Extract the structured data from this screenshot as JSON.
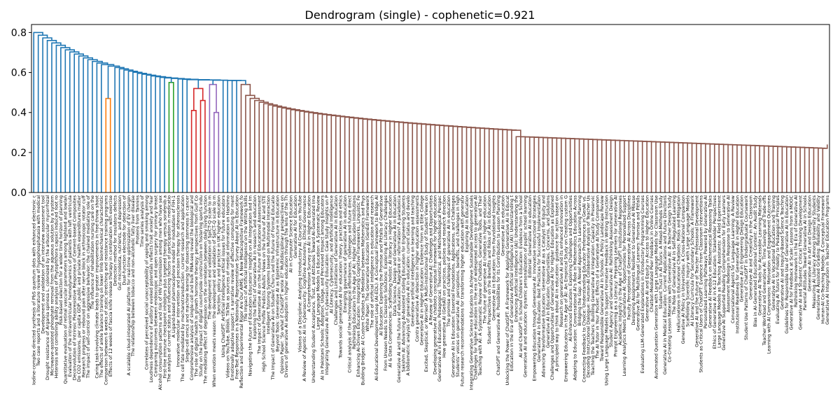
{
  "chart_data": {
    "type": "dendrogram",
    "title": "Dendrogram (single) - cophenetic=0.921",
    "xlabel": "",
    "ylabel": "",
    "ylim": [
      0,
      0.84
    ],
    "yticks": [
      0.0,
      0.2,
      0.4,
      0.6,
      0.8
    ],
    "ytick_labels": [
      "0.0",
      "0.2",
      "0.4",
      "0.6",
      "0.8"
    ],
    "colors": {
      "above_threshold": "#1f77b4",
      "cluster_orange": "#ff7f0e",
      "cluster_green": "#2ca02c",
      "cluster_red": "#d62728",
      "cluster_purple": "#9467bd",
      "cluster_brown": "#8c564b"
    },
    "clusters": [
      {
        "color": "cluster_orange",
        "leaf_range": [
          16,
          17
        ],
        "height": 0.47
      },
      {
        "color": "cluster_green",
        "leaf_range": [
          30,
          31
        ],
        "height": 0.55
      },
      {
        "color": "cluster_red",
        "leaf_range": [
          35,
          38
        ],
        "height": 0.52
      },
      {
        "color": "cluster_purple",
        "leaf_range": [
          39,
          41
        ],
        "height": 0.54
      },
      {
        "color": "cluster_brown",
        "leaf_range": [
          46,
          172
        ],
        "height": 0.54
      }
    ],
    "leaf_labels": [
      "Iodine-complex directed synthesis of PbS quantum dots with enhanced electronic c",
      "Two case reports and a literature review of hypophosphatasia with medical",
      "Development and validation of an interview assessment tool",
      "Drought resistance of Argania spinosa L. colonized by the arbuscular mycorrhizal",
      "Microwave-assisted phosphate removal from the aqueous solution by a system",
      "Heterosis and combining ability analysis of Phytophthora capsici induced root ro",
      "Risk-based selection for a wider time horizon of planning",
      "Quantitative evaluation of retinal vascular parameters among highland and lowlan",
      "Evaluation of the intraventricular hemodynamics of patients with left ventricula",
      "Deconvolution of Intrinsic Piezoresistive Responses of Cement-based Composites",
      "Do CO2 emissions, per capita GDP, public and private health expenditures matter",
      "Research progress or rebound pain after nerve block in arthroscopic rotator cuff",
      "The impact of self-control on aggressive behavior: the chained mediating role of",
      "The influence of rehabilitation nursing care on the",
      "Caring task-involving climate leads to greater improvements in free-throw shoot",
      "The effects of ankle balance training on lower limb biomechanical characteristic",
      "Comparison between 6 weeks of static stretching and resistance training programs",
      "Effects of 12 weeks of fascia knife release therapy in combination with exercise",
      "Detection method for insulators defects",
      "Gut microbiota, nutrients, and depression",
      "Dual-function electrode for detection of",
      "A scalable cloud-integrated AI platform for real-time optimization of EV chargin",
      "The relationship between tobacco and non-alcoholic fatty liver disease",
      "Proteins from Tannins",
      "Time series analysis of",
      "Correlates of perceived social unacceptability of vaping and smoking among",
      "Loudness dependence of auditory evoked potentials reflects trait anxiety and fear",
      "Comparing outcomes between endoscopic and open surgery for primary breast",
      "Alcohol consumption patterns and risk of HIV transmission among men who have sex",
      "First-line immune checkpoint inhibitors plus targeted therapy versus sorafenib a",
      "The analysis of current status and influencing factors of participation in medicatio",
      "A Ligand-based pharmacophore model for modulation of FIH-1",
      "Innovative molecular intervention and precision therapy for atherosclerosis",
      "The cell fate mediated by mechanotransduction: current research and application",
      "Single-cell omics and machine learning for dissecting stemness in cancer",
      "Comprehensive analysis of single-cell and bulk RNA-seq reveal the biological and",
      "The role of digital health in growth hormone therapy: perspectives from Gulf Co",
      "Study on the impact of digital countryside construction on fostering sports indu",
      "The mediating effect of depression on the correlation between daily living function",
      "The development and validation of SpiCT-Q scale to m",
      "When emotion meets reason: the development and validation of SpiCT-Q scale to m",
      "Sanction, policy and practice in UK higher education",
      "Using ChatGPT: Artificial intelligence ethical issues for future educators",
      "Videos on YouTube, Bilibili, TikTok as sources of medical information on Hashimo",
      "Emotionally adaptive support: a narrative review of affective computing for ment",
      "Free-Text Responses in a Nationally Representative Survey About AI in Education",
      "Reflection and Experimental Rigor Are Our AIMS: A New Metacognitive Framework fo",
      "The Impact of Artificial Intelligence on the Writing Skills",
      "Navigating the Future of Education Educators' Insights on AI Integration and Im",
      "Exploring the Effect of Generative AI in research and education",
      "The Impact of Generative AI on the Future of Educational Assessment",
      "High School Science Profile Predicts Adults' Views on the Future of AI and STE",
      "Intelligent Tutoring Systems based on Multimodal Interaction",
      "The Impact of Generative AI on Student Churn and the Future of Formal Educatio",
      "Beyond Tools: Generative AI as Epistemic Infrastructure in Education",
      "Opinion Paper: 'So what if ChatGPT wrote it?' Multidisciplinary perspectives on",
      "Drivers of generative AI adoption in higher education through the lens of the Th",
      "AI in Computer Science Education",
      "Generative AI for Education",
      "Visions of a Discipline: Analyzing Introductory AI Courses on YouTube",
      "A Review of Agentic AI in Cybersecurity: Cognitive Autonomy, Ethical Governance",
      "A Comprehensive Survey on AI in Higher Education",
      "Understanding Student Acceptance, Trust, and Attitudes Toward AI-Generated Ima",
      "Large Language Models in Education: A Systematic Review",
      "AI in Pakistani Schools: Adoption, Usage, and Perceived Impact among Educators",
      "Integrating Generative AI in Cybersecurity Education: Case Study Insights on P",
      "AI Literacy, Cybersecurity, and Artificial Intelligence",
      "Challenges and Limitations of Generative AI in Education",
      "Towards social generative AI for education: theory, practices and ethics",
      "Emerging governance of generative AI in education",
      "Critical analysis of the technological affordances, challenges and future direct",
      "Rethinking Education in the Age of AI: Higher Education Institutions",
      "Enhancing AI-Driven Education: Integrating Cognitive Frameworks, Linguistic Fe",
      "Building Bridges: AI Custom Chatbots as Mediators between Mathematics and Phys",
      "White Paper: The Generative Education (GenEd) Framework",
      "The role of artificial intelligence in education and research",
      "AI-Educational Development Loop (AI-EDL): A Conceptual Framework to Bridge AI",
      "AI Education: Exploring the Promise and Pitfalls of Generative",
      "From Unseen Needs to Classroom Solutions: Exploring AI Literacy Challenges",
      "AI & Data Competencies: Scaffolding holistic AI literacy in Higher Education",
      "Data Science, Design and Generative AI in Education",
      "Generative AI and the future of education: Ragnarok or reformation? A paradoxica",
      "Sakshm AI: Advancing AI-Assisted Coding Education for Engineering Students",
      "A bibliometric analysis of generative AI in education: current status and develo",
      "Generative artificial intelligence on learning and teaching",
      "Contra generative AI detection in higher education assessments",
      "Generative AI in Higher Education: Evidence from an Elite College",
      "Excited, Skeptical, or Worried? A Multi-Institutional Study of Student Views on",
      "A Review of Generative AI: Challenges and Opportunities",
      "Developing generative AI chatbots conceptual framework for higher education",
      "Generative AI in Education: Pedagogical, Theoretical, and Methodological Perspec",
      "How generative AI (GenAI) on practices, policies and research direction",
      "The promise and challenges of generative AI in education",
      "Generative AI in Education: Essential Foundations, Applications, and Challenges",
      "Students' voices on generative AI: perceptions, benefits, and challenges in high",
      "Future research recommendations for transforming higher education with generativ",
      "Exploring AI in Education",
      "Integrating Generative Science Education to Achieve Sustainable Development Goals",
      "Challenges for higher education in the era of widespread access to generative AI",
      "Teaching with AI: A Systematic Review of Chatbots, Generative Tools, and Their",
      "The future of generative AI chatbots in higher education",
      "Student Perspectives on the Benefits and Risks of AI in Education",
      "Generative AI in Education: From Foundational Insights",
      "ChatGPT and Generative AI: Possibilities for Its Contribution to Lesson Planning",
      "Generative AI in education",
      "Unlocking the Power of ChatGPT: A Framework for Applying Generative AI in Educat",
      "Education in the Era of Generative Artificial Intelligence (AI): Understanding t",
      "Enhancing Artificial Intelligence (AI): Understanding the",
      "AI and ChatGPT in School Children's Education: Evidence from a School",
      "Generative AI and education: dynamic personalization of pupils' school learning",
      "Editorial: Generative AI in education",
      "Empowering Education through Generative AI: Innovative Instructional Strategies",
      "Generative AI in Education: Best Practices for Successful Implementation",
      "Advancing Transformative Education: Generative AI as a Catalyst for Equity and",
      "Generative AI in Education: Opportunities, Concerns, and Solutions",
      "Challenges and Opportunities of Generative AI for Higher Education as Explained",
      "A principled way to think about AI in education: guidance for action based on",
      "Research on generative AI and its enhanced innovation in",
      "Empowering Educators in the Age of AI: An Empirical Study on Creating custom G",
      "AI-Enhanced Education: Exploring Challenges and Opportunities",
      "Adapting to Education: Conversational AI's Role in Mathematics Education Across",
      "Bridging the Gap: A Novel Approach to Learning Planning",
      "Connecting Feedback to Choice: Understanding Educator Preferences in GenAI vs.",
      "Decoding Instructional Dialogue: Human-AI Collaborative Analysis of Teacher Us",
      "Teaching the Teachers: Building Generative AI Integration Capacity in Preservic",
      "The AI Tutor in Your Pocket: Effects of a Generative AI Study Companion",
      "Toward Responsible Generative AI in Schools: A Policy Landscape Review",
      "Using Large Language Models to Support Formative Feedback in Writing Instruction",
      "Student Agency and Generative AI: Rethinking Assessment Design",
      "Prompt Engineering as a Literacy: Preparing Learners for Generative AI",
      "Academic Integrity in the Age of ChatGPT: Institutional Responses",
      "Learning Analytics Meets Generative AI: Opportunities for Personalized Support",
      "Faculty Perceptions of Generative AI Across Disciplines",
      "Designing Assignments Resilient to Generative AI Misuse",
      "Generative AI for Multilingual Learners: Promise and Pitfalls",
      "Evaluating LLM-Generated Explanations in Introductory Programming Courses",
      "Generative AI and Equity in Access to Higher Education",
      "Chatbot-Mediated Peer Feedback in Online Courses",
      "Automated Question Generation with Large Language Models for Classroom Use",
      "Student Trust in AI Tutors: A Mixed-Methods Study",
      "Generative AI in Medical Education: Current Applications and Future Directions",
      "Co-Creating Lesson Materials with Generative AI: A Teacher Design Study",
      "The Role of Generative AI in Self-Regulated Learning",
      "Hallucinations in Educational Chatbots: Risks and Mitigation",
      "Generative AI Policy in Universities: A Cross-National Comparison",
      "Scaffolding Scientific Inquiry with Large Language Models",
      "AI Literacy Curricula for Secondary Schools: A Framework",
      "Generative AI and the Future of Teacher Professional Development",
      "Students as Critical Users of ChatGPT: Evidence from Classroom Interventions",
      "Personalized Learning Pathways Powered by Generative AI",
      "Generative AI Feedback on Mathematical Reasoning Tasks",
      "Ethics of Generative AI in K-12 Education: Stakeholder Perspectives",
      "Large Language Models as Teaching Assistants: A Field Experiment",
      "Generative AI Supported Reading Comprehension for Early Learners",
      "Assessment Redesign in Response to Generative AI",
      "Conversational Agents for Language Learning: A Review",
      "Institutional Readiness for Generative AI in Higher Education",
      "Generative AI in Engineering Design Education",
      "Student Use Patterns of ChatGPT in Undergraduate Coursework",
      "Generative AI and Creativity in the Classroom",
      "Bias in AI-Generated Educational Content: An Audit Study",
      "Generative AI Tools for Accessible Learning Materials",
      "Teacher Workload and Generative AI: Time Savings and Trade-offs",
      "Learning with AI Companions: Motivation and Engagement Outcomes",
      "Generative AI in Vocational Education and Training",
      "Evaluating AI Tutors for Fidelity to Pedagogical Principles",
      "Generative AI and Inquiry-Based Science Teaching",
      "Guidelines for Responsible Use of Generative AI in Education",
      "Generative AI for Feedback at Scale: Lessons from a MOOC",
      "Rethinking Homework in the Era of Generative AI",
      "Generative AI and Students' Critical Thinking Development",
      "Parental Attitudes Toward Generative AI in Schools",
      "Generative AI in Art and Design Education",
      "Measuring AI Literacy Among University Students",
      "Generative AI Assisted Grading: Reliability and Validity",
      "Human-AI Co-Teaching Models: A Conceptual Framework",
      "Generative AI Integration in Teacher Education Programs"
    ]
  }
}
